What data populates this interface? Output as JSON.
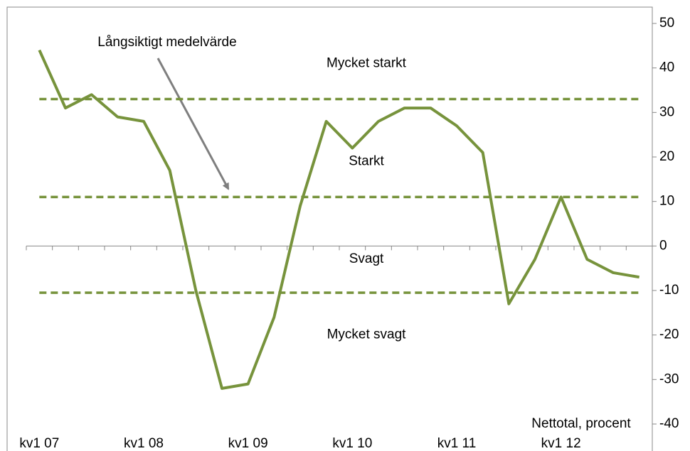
{
  "chart_data": {
    "type": "line",
    "categories": [
      "kv1 07",
      null,
      null,
      null,
      "kv1 08",
      null,
      null,
      null,
      "kv1 09",
      null,
      null,
      null,
      "kv1 10",
      null,
      null,
      null,
      "kv1 11",
      null,
      null,
      null,
      "kv1 12",
      null,
      null,
      null
    ],
    "series": [
      {
        "color": "#77933c",
        "values": [
          44,
          31,
          34,
          29,
          28,
          17,
          -10,
          -32,
          -31,
          -16,
          9,
          28,
          22,
          28,
          31,
          31,
          27,
          21,
          -13,
          -3,
          11,
          -3,
          -6,
          -7
        ]
      }
    ],
    "reference_lines": [
      {
        "value": 33,
        "color": "#77933c"
      },
      {
        "value": 11,
        "color": "#77933c"
      },
      {
        "value": -10.5,
        "color": "#77933c"
      }
    ],
    "annotations": [
      {
        "text": "Mycket starkt",
        "y": 41
      },
      {
        "text": "Starkt",
        "y": 19
      },
      {
        "text": "Svagt",
        "y": -3
      },
      {
        "text": "Mycket svagt",
        "y": -20
      }
    ],
    "arrow_label": "Långsiktigt medelvärde",
    "axis_label": "Nettotal, procent",
    "ylim": [
      -40,
      50
    ],
    "yticks": [
      -40,
      -30,
      -20,
      -10,
      0,
      10,
      20,
      30,
      40,
      50
    ]
  }
}
